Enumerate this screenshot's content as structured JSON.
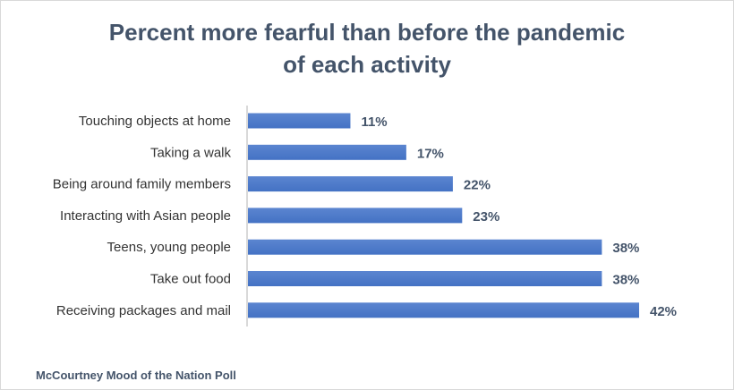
{
  "chart_data": {
    "type": "bar",
    "orientation": "horizontal",
    "title_lines": [
      "Percent more fearful than before the pandemic",
      "of each activity"
    ],
    "categories": [
      "Touching objects at home",
      "Taking a walk",
      "Being around family members",
      "Interacting with Asian people",
      "Teens, young people",
      "Take out food",
      "Receiving packages and mail"
    ],
    "values": [
      11,
      17,
      22,
      23,
      38,
      38,
      42
    ],
    "value_labels": [
      "11%",
      "17%",
      "22%",
      "23%",
      "38%",
      "38%",
      "42%"
    ],
    "xlim": [
      0,
      42
    ],
    "grid": false,
    "bar_color": "#4472c4",
    "bar_color_light": "#5b85d0"
  },
  "source": "McCourtney Mood of the Nation Poll"
}
